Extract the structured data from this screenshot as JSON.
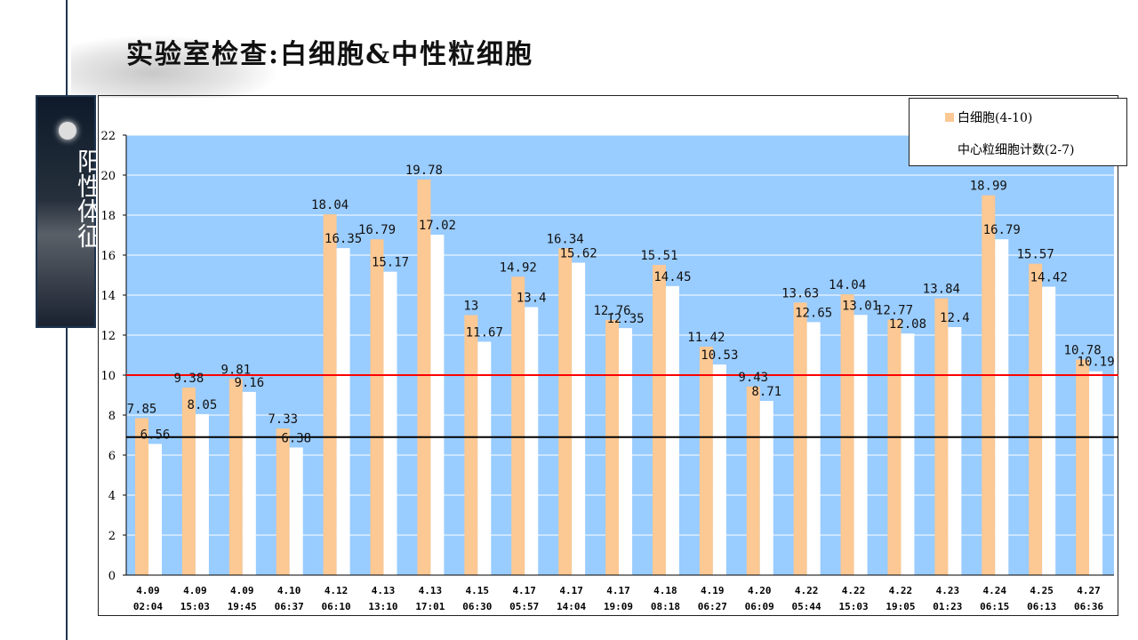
{
  "title": "实验室检查:白细胞&中性粒细胞",
  "side_label": "阳性体征",
  "chart_data": {
    "type": "bar",
    "categories": [
      [
        "4.09",
        "02:04"
      ],
      [
        "4.09",
        "15:03"
      ],
      [
        "4.09",
        "19:45"
      ],
      [
        "4.10",
        "06:37"
      ],
      [
        "4.12",
        "06:10"
      ],
      [
        "4.13",
        "13:10"
      ],
      [
        "4.13",
        "17:01"
      ],
      [
        "4.15",
        "06:30"
      ],
      [
        "4.17",
        "05:57"
      ],
      [
        "4.17",
        "14:04"
      ],
      [
        "4.17",
        "19:09"
      ],
      [
        "4.18",
        "08:18"
      ],
      [
        "4.19",
        "06:27"
      ],
      [
        "4.20",
        "06:09"
      ],
      [
        "4.22",
        "05:44"
      ],
      [
        "4.22",
        "15:03"
      ],
      [
        "4.22",
        "19:05"
      ],
      [
        "4.23",
        "01:23"
      ],
      [
        "4.24",
        "06:15"
      ],
      [
        "4.25",
        "06:13"
      ],
      [
        "4.27",
        "06:36"
      ]
    ],
    "series": [
      {
        "name": "白细胞(4-10)",
        "color": "#fcc893",
        "values": [
          7.85,
          9.38,
          9.81,
          7.33,
          18.04,
          16.79,
          19.78,
          13,
          14.92,
          16.34,
          12.76,
          15.51,
          11.42,
          9.43,
          13.63,
          14.04,
          12.77,
          13.84,
          18.99,
          15.57,
          10.78
        ]
      },
      {
        "name": "中心粒细胞计数(2-7)",
        "color": "#ffffff",
        "values": [
          6.56,
          8.05,
          9.16,
          6.38,
          16.35,
          15.17,
          17.02,
          11.67,
          13.4,
          15.62,
          12.35,
          14.45,
          10.53,
          8.71,
          12.65,
          13.01,
          12.08,
          12.4,
          16.79,
          14.42,
          10.19
        ]
      }
    ],
    "reference_lines": [
      {
        "value": 10,
        "color": "#ff0000"
      },
      {
        "value": 6.9,
        "color": "#000000"
      }
    ],
    "ylim": [
      0,
      22
    ],
    "yticks": [
      0,
      2,
      4,
      6,
      8,
      10,
      12,
      14,
      16,
      18,
      20,
      22
    ],
    "plot_bg": "#99ccff",
    "grid": true,
    "legend": "top-right"
  }
}
